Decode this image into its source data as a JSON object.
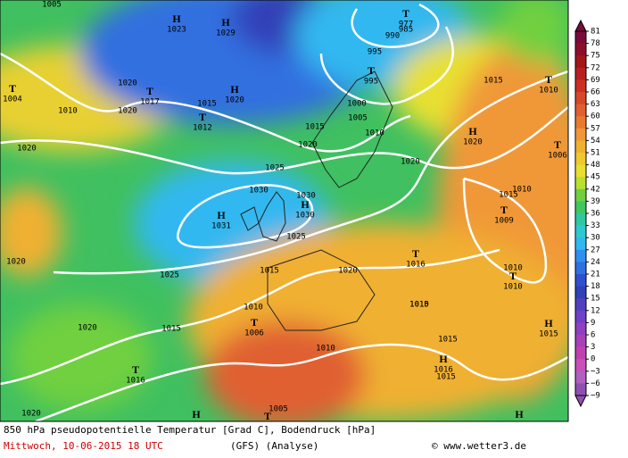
{
  "map": {
    "caption": {
      "line1": "850 hPa pseudopotentielle Temperatur [Grad C], Bodendruck [hPa]",
      "date": "Mittwoch, 10-06-2015  18 UTC",
      "model": "(GFS)  (Analyse)",
      "credit": "© www.wetter3.de"
    },
    "colorbar": {
      "labels": [
        "81",
        "78",
        "75",
        "72",
        "69",
        "66",
        "63",
        "60",
        "57",
        "54",
        "51",
        "48",
        "45",
        "42",
        "39",
        "36",
        "33",
        "30",
        "27",
        "24",
        "21",
        "18",
        "15",
        "12",
        "9",
        "6",
        "3",
        "0",
        "−3",
        "−6",
        "−9"
      ],
      "colors": [
        "#7a0a3a",
        "#8c0f2a",
        "#a01818",
        "#b82020",
        "#cc3020",
        "#d84828",
        "#e06030",
        "#e87a30",
        "#f09838",
        "#f0b030",
        "#f0c830",
        "#e8e030",
        "#b8e030",
        "#70d040",
        "#40c860",
        "#30c8a0",
        "#30c8d0",
        "#30b8f0",
        "#3090f0",
        "#3070e0",
        "#3050d0",
        "#3040b8",
        "#5040c0",
        "#7040c8",
        "#9040c0",
        "#a840b8",
        "#c040b0",
        "#c850b8",
        "#b060c0",
        "#9050b0"
      ]
    },
    "isobar_labels": [
      "1005",
      "985",
      "990",
      "995",
      "1015",
      "1010",
      "1020",
      "1020",
      "1015",
      "1000",
      "1005",
      "1015",
      "1010",
      "1020",
      "1020",
      "1020",
      "1025",
      "1030",
      "1030",
      "1010",
      "1015",
      "1025",
      "1020",
      "1015",
      "1020",
      "1025",
      "1010",
      "1010",
      "1015",
      "1010",
      "1020",
      "1015",
      "1015",
      "1010",
      "1015",
      "1005",
      "1020"
    ],
    "pressure_centers": [
      {
        "symbol": "H",
        "value": "1023"
      },
      {
        "symbol": "H",
        "value": "1029"
      },
      {
        "symbol": "T",
        "value": "977"
      },
      {
        "symbol": "T",
        "value": "995"
      },
      {
        "symbol": "T",
        "value": "1010"
      },
      {
        "symbol": "T",
        "value": "1004"
      },
      {
        "symbol": "T",
        "value": "1017"
      },
      {
        "symbol": "H",
        "value": "1020"
      },
      {
        "symbol": "T",
        "value": "1012"
      },
      {
        "symbol": "H",
        "value": "1020"
      },
      {
        "symbol": "T",
        "value": "1006"
      },
      {
        "symbol": "H",
        "value": "1030"
      },
      {
        "symbol": "H",
        "value": "1031"
      },
      {
        "symbol": "T",
        "value": "1009"
      },
      {
        "symbol": "T",
        "value": "1016"
      },
      {
        "symbol": "T",
        "value": "1010"
      },
      {
        "symbol": "T",
        "value": "1006"
      },
      {
        "symbol": "H",
        "value": "1015"
      },
      {
        "symbol": "T",
        "value": "1016"
      },
      {
        "symbol": "H",
        "value": "1016"
      },
      {
        "symbol": "H"
      },
      {
        "symbol": "T"
      },
      {
        "symbol": "H"
      }
    ]
  }
}
